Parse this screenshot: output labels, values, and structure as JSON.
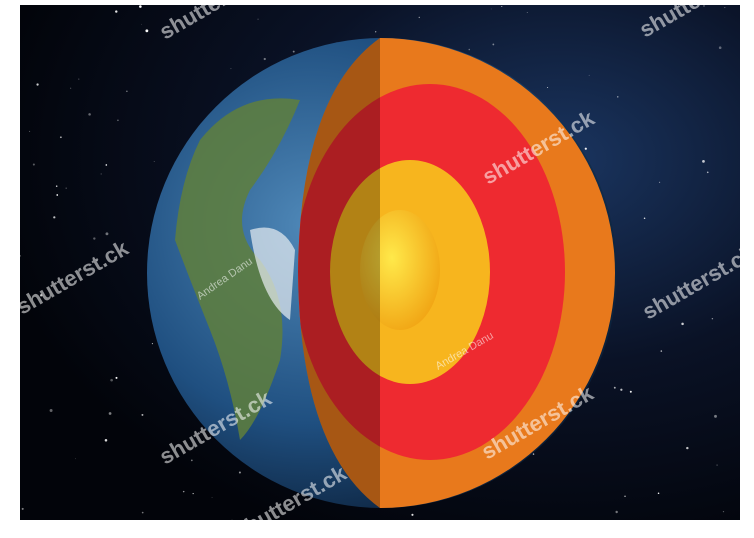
{
  "watermark": {
    "brand": "shutterst.ck",
    "author": "Andrea Danu"
  }
}
